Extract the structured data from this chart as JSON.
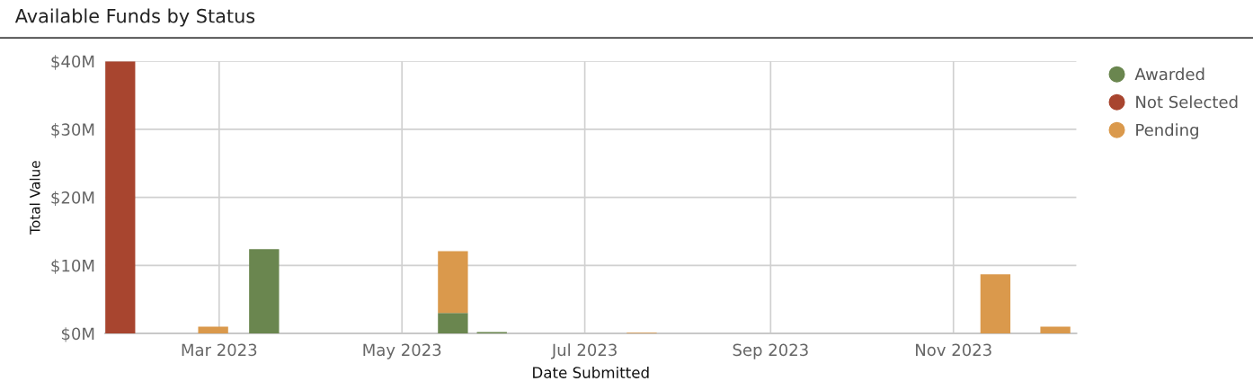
{
  "chart_data": {
    "type": "bar",
    "title": "Available Funds by Status",
    "xlabel": "Date Submitted",
    "ylabel": "Total Value",
    "x": [
      "2023-01-27",
      "2023-02-27",
      "2023-03-16",
      "2023-05-18",
      "2023-05-31",
      "2023-07-20",
      "2023-11-15",
      "2023-12-05"
    ],
    "series": [
      {
        "name": "Awarded",
        "color": "#6a864f",
        "values": [
          null,
          null,
          12.4,
          3.0,
          0.2,
          null,
          null,
          null
        ]
      },
      {
        "name": "Not Selected",
        "color": "#a8452f",
        "values": [
          40,
          null,
          null,
          null,
          null,
          null,
          null,
          null
        ]
      },
      {
        "name": "Pending",
        "color": "#da994c",
        "values": [
          null,
          1.0,
          null,
          9.1,
          null,
          0.1,
          8.7,
          1.0
        ]
      }
    ],
    "stacked": true,
    "xlim": [
      "2023-01-22",
      "2023-12-12"
    ],
    "xticks": [
      {
        "value": "2023-03-01",
        "label": "Mar 2023"
      },
      {
        "value": "2023-05-01",
        "label": "May 2023"
      },
      {
        "value": "2023-07-01",
        "label": "Jul 2023"
      },
      {
        "value": "2023-09-01",
        "label": "Sep 2023"
      },
      {
        "value": "2023-11-01",
        "label": "Nov 2023"
      }
    ],
    "ylim": [
      0,
      40
    ],
    "yticks": [
      {
        "value": 0,
        "label": "$0M"
      },
      {
        "value": 10,
        "label": "$10M"
      },
      {
        "value": 20,
        "label": "$20M"
      },
      {
        "value": 30,
        "label": "$30M"
      },
      {
        "value": 40,
        "label": "$40M"
      }
    ],
    "grid": true,
    "legend": "top right"
  }
}
